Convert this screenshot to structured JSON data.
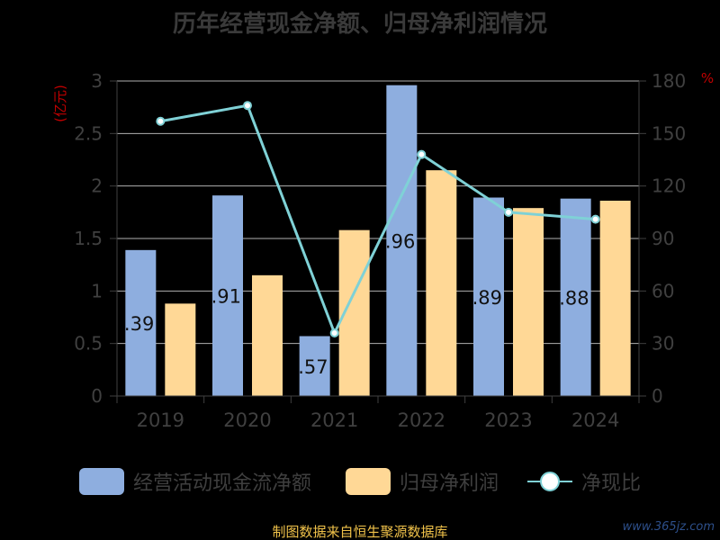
{
  "title": "历年经营现金净额、归母净利润情况",
  "source_text": "制图数据来自恒生聚源数据库",
  "watermark": "www.365jz.com",
  "colors": {
    "bar1": "#8eaedf",
    "bar2": "#ffd896",
    "line": "#7fd1d6",
    "axis": "#404040",
    "grid": "#b0b0b0",
    "unit": "#c00000"
  },
  "chart_data": {
    "type": "bar",
    "categories": [
      "2019",
      "2020",
      "2021",
      "2022",
      "2023",
      "2024"
    ],
    "series": [
      {
        "name": "经营活动现金流净额",
        "type": "bar",
        "axis": "left",
        "values": [
          1.39,
          1.91,
          0.57,
          2.96,
          1.89,
          1.88
        ],
        "labels": [
          ".39",
          ".91",
          ".57",
          ".96",
          ".89",
          ".88"
        ]
      },
      {
        "name": "归母净利润",
        "type": "bar",
        "axis": "left",
        "values": [
          0.88,
          1.15,
          1.58,
          2.15,
          1.79,
          1.86
        ]
      },
      {
        "name": "净现比",
        "type": "line",
        "axis": "right",
        "values": [
          157,
          166,
          36,
          138,
          105,
          101
        ]
      }
    ],
    "y_left": {
      "label": "亿元",
      "min": 0,
      "max": 3,
      "ticks": [
        "0",
        "0.5",
        "1",
        "1.5",
        "2",
        "2.5",
        "3"
      ]
    },
    "y_right": {
      "label": "%",
      "min": 0,
      "max": 180,
      "ticks": [
        "0",
        "30",
        "60",
        "90",
        "120",
        "150",
        "180"
      ]
    },
    "grid": true,
    "legend_position": "bottom"
  }
}
